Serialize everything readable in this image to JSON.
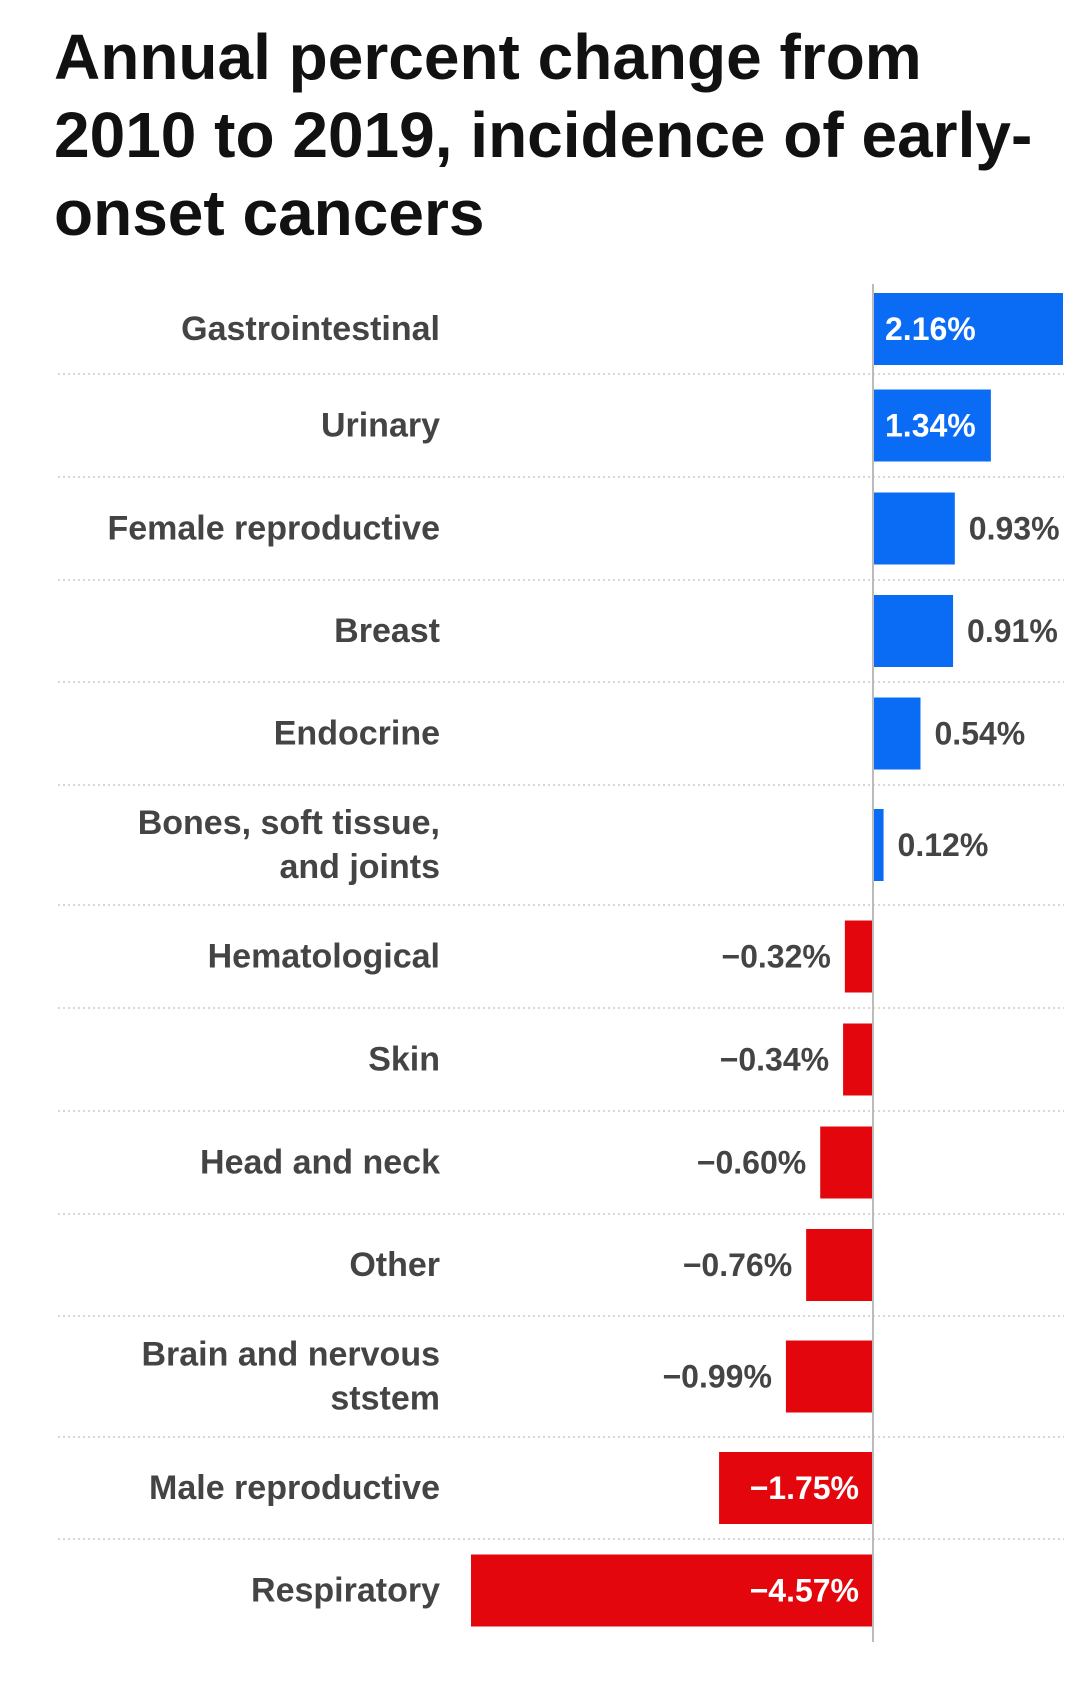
{
  "title": "Annual percent change from 2010 to 2019, incidence of early-onset cancers",
  "chart_data": {
    "type": "bar",
    "orientation": "horizontal",
    "categories": [
      "Gastrointestinal",
      "Urinary",
      "Female reproductive",
      "Breast",
      "Endocrine",
      "Bones, soft tissue, and joints",
      "Hematological",
      "Skin",
      "Head and neck",
      "Other",
      "Brain and nervous ststem",
      "Male reproductive",
      "Respiratory"
    ],
    "category_lines": [
      [
        "Gastrointestinal"
      ],
      [
        "Urinary"
      ],
      [
        "Female reproductive"
      ],
      [
        "Breast"
      ],
      [
        "Endocrine"
      ],
      [
        "Bones, soft tissue,",
        "and joints"
      ],
      [
        "Hematological"
      ],
      [
        "Skin"
      ],
      [
        "Head and neck"
      ],
      [
        "Other"
      ],
      [
        "Brain and nervous",
        "ststem"
      ],
      [
        "Male reproductive"
      ],
      [
        "Respiratory"
      ]
    ],
    "values": [
      2.16,
      1.34,
      0.93,
      0.91,
      0.54,
      0.12,
      -0.32,
      -0.34,
      -0.6,
      -0.76,
      -0.99,
      -1.75,
      -4.57
    ],
    "value_labels": [
      "2.16%",
      "1.34%",
      "0.93%",
      "0.91%",
      "0.54%",
      "0.12%",
      "−0.32%",
      "−0.34%",
      "−0.60%",
      "−0.76%",
      "−0.99%",
      "−1.75%",
      "−4.57%"
    ],
    "unit": "%",
    "colors": {
      "positive": "#0a6cf5",
      "negative": "#e3060d",
      "label_dark": "#444444",
      "label_light": "#ffffff",
      "divider": "#cccccc",
      "axis": "#bbbbbb"
    },
    "grid": false,
    "legend": "none"
  }
}
